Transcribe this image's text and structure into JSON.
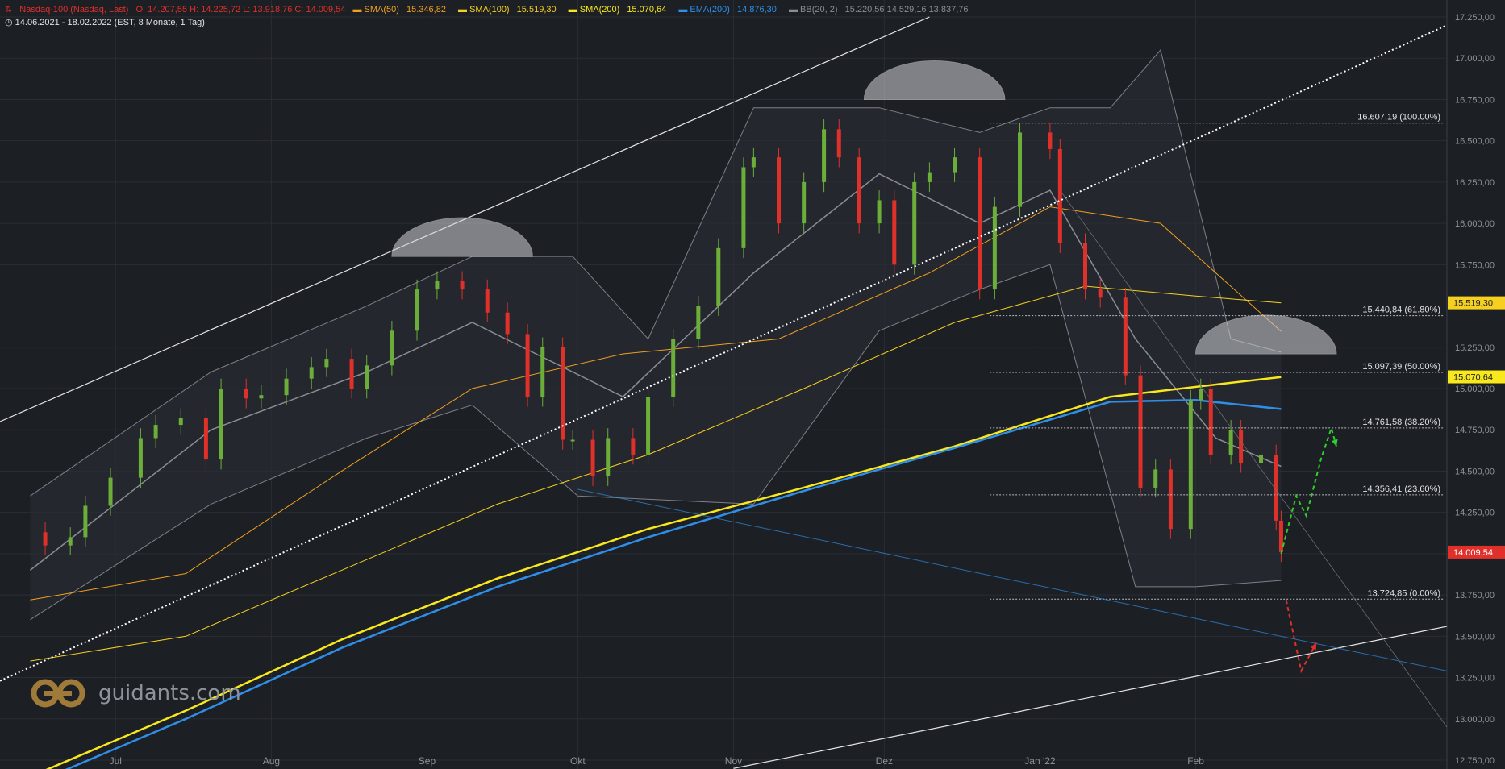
{
  "header": {
    "symbol": "Nasdaq-100 (Nasdaq, Last)",
    "ohlc": "O: 14.207,55  H: 14.225,72  L: 13.918,76  C: 14.009,54",
    "indicators": [
      {
        "label": "SMA(50)",
        "value": "15.346,82",
        "color": "#f0a020"
      },
      {
        "label": "SMA(100)",
        "value": "15.519,30",
        "color": "#f5d020"
      },
      {
        "label": "SMA(200)",
        "value": "15.070,64",
        "color": "#f8e81c"
      },
      {
        "label": "EMA(200)",
        "value": "14.876,30",
        "color": "#2f8fe8"
      },
      {
        "label": "BB(20, 2)",
        "value": "15.220,56  14.529,16  13.837,76",
        "color": "#8a8d92"
      }
    ],
    "date_range": "14.06.2021 - 18.02.2022",
    "range_info": "(EST, 8 Monate, 1 Tag)"
  },
  "logo": {
    "text": "guidants.com",
    "icon": "guidants-logo-icon"
  },
  "chart_data": {
    "type": "candlestick",
    "title": "",
    "xlabel": "",
    "ylabel": "",
    "ylim": [
      12750,
      17250
    ],
    "y_ticks": [
      12750,
      13000,
      13250,
      13500,
      13750,
      14000,
      14250,
      14500,
      14750,
      15000,
      15250,
      15500,
      15750,
      16000,
      16250,
      16500,
      16750,
      17000,
      17250
    ],
    "y_tick_labels": [
      "12.750,00",
      "13.000,00",
      "13.250,00",
      "13.500,00",
      "13.750,00",
      "14.000,00",
      "14.250,00",
      "14.500,00",
      "14.750,00",
      "15.000,00",
      "15.250,00",
      "15.500,00",
      "15.750,00",
      "16.000,00",
      "16.250,00",
      "16.500,00",
      "16.750,00",
      "17.000,00",
      "17.250,00"
    ],
    "x_labels": [
      "Jul",
      "Aug",
      "Sep",
      "Okt",
      "Nov",
      "Dez",
      "Jan '22",
      "Feb"
    ],
    "x_label_dates": [
      "2021-07-01",
      "2021-08-01",
      "2021-09-01",
      "2021-10-01",
      "2021-11-01",
      "2021-12-01",
      "2022-01-01",
      "2022-02-01"
    ],
    "candles_close_path": [
      [
        "2021-06-14",
        14130
      ],
      [
        "2021-06-17",
        14050
      ],
      [
        "2021-06-22",
        14100
      ],
      [
        "2021-06-25",
        14290
      ],
      [
        "2021-06-30",
        14460
      ],
      [
        "2021-07-06",
        14700
      ],
      [
        "2021-07-09",
        14780
      ],
      [
        "2021-07-14",
        14820
      ],
      [
        "2021-07-19",
        14570
      ],
      [
        "2021-07-22",
        15000
      ],
      [
        "2021-07-27",
        14940
      ],
      [
        "2021-07-30",
        14960
      ],
      [
        "2021-08-04",
        15060
      ],
      [
        "2021-08-09",
        15130
      ],
      [
        "2021-08-12",
        15180
      ],
      [
        "2021-08-17",
        15000
      ],
      [
        "2021-08-20",
        15140
      ],
      [
        "2021-08-25",
        15350
      ],
      [
        "2021-08-30",
        15600
      ],
      [
        "2021-09-03",
        15650
      ],
      [
        "2021-09-08",
        15600
      ],
      [
        "2021-09-13",
        15460
      ],
      [
        "2021-09-17",
        15330
      ],
      [
        "2021-09-21",
        14950
      ],
      [
        "2021-09-24",
        15250
      ],
      [
        "2021-09-28",
        14690
      ],
      [
        "2021-09-30",
        14690
      ],
      [
        "2021-10-04",
        14470
      ],
      [
        "2021-10-07",
        14700
      ],
      [
        "2021-10-12",
        14600
      ],
      [
        "2021-10-15",
        14950
      ],
      [
        "2021-10-20",
        15300
      ],
      [
        "2021-10-25",
        15500
      ],
      [
        "2021-10-29",
        15850
      ],
      [
        "2021-11-03",
        16340
      ],
      [
        "2021-11-05",
        16400
      ],
      [
        "2021-11-10",
        16000
      ],
      [
        "2021-11-15",
        16250
      ],
      [
        "2021-11-19",
        16570
      ],
      [
        "2021-11-22",
        16400
      ],
      [
        "2021-11-26",
        16000
      ],
      [
        "2021-11-30",
        16140
      ],
      [
        "2021-12-03",
        15750
      ],
      [
        "2021-12-07",
        16250
      ],
      [
        "2021-12-10",
        16310
      ],
      [
        "2021-12-15",
        16400
      ],
      [
        "2021-12-20",
        15600
      ],
      [
        "2021-12-23",
        16100
      ],
      [
        "2021-12-28",
        16550
      ],
      [
        "2022-01-03",
        16450
      ],
      [
        "2022-01-05",
        15880
      ],
      [
        "2022-01-10",
        15600
      ],
      [
        "2022-01-13",
        15550
      ],
      [
        "2022-01-18",
        15080
      ],
      [
        "2022-01-21",
        14400
      ],
      [
        "2022-01-24",
        14510
      ],
      [
        "2022-01-27",
        14150
      ],
      [
        "2022-01-31",
        14930
      ],
      [
        "2022-02-02",
        15000
      ],
      [
        "2022-02-04",
        14600
      ],
      [
        "2022-02-08",
        14750
      ],
      [
        "2022-02-10",
        14550
      ],
      [
        "2022-02-14",
        14600
      ],
      [
        "2022-02-17",
        14200
      ],
      [
        "2022-02-18",
        14010
      ]
    ],
    "moving_averages": [
      {
        "name": "SMA(50)",
        "color": "#f0a020",
        "points": [
          [
            "2021-06-14",
            13720
          ],
          [
            "2021-07-15",
            13880
          ],
          [
            "2021-08-15",
            14500
          ],
          [
            "2021-09-10",
            15000
          ],
          [
            "2021-10-10",
            15210
          ],
          [
            "2021-11-10",
            15300
          ],
          [
            "2021-12-10",
            15700
          ],
          [
            "2022-01-03",
            16100
          ],
          [
            "2022-01-25",
            16000
          ],
          [
            "2022-02-18",
            15346
          ]
        ]
      },
      {
        "name": "SMA(100)",
        "color": "#f5d020",
        "points": [
          [
            "2021-06-14",
            13350
          ],
          [
            "2021-07-15",
            13500
          ],
          [
            "2021-08-15",
            13900
          ],
          [
            "2021-09-15",
            14300
          ],
          [
            "2021-10-15",
            14600
          ],
          [
            "2021-11-15",
            15000
          ],
          [
            "2021-12-15",
            15400
          ],
          [
            "2022-01-10",
            15620
          ],
          [
            "2022-02-01",
            15560
          ],
          [
            "2022-02-18",
            15519
          ]
        ]
      },
      {
        "name": "SMA(200)",
        "color": "#f8e81c",
        "points": [
          [
            "2021-06-14",
            12650
          ],
          [
            "2021-07-15",
            13050
          ],
          [
            "2021-08-15",
            13480
          ],
          [
            "2021-09-15",
            13850
          ],
          [
            "2021-10-15",
            14150
          ],
          [
            "2021-11-15",
            14400
          ],
          [
            "2021-12-15",
            14650
          ],
          [
            "2022-01-15",
            14950
          ],
          [
            "2022-02-18",
            15070
          ]
        ]
      },
      {
        "name": "EMA(200)",
        "color": "#2f8fe8",
        "points": [
          [
            "2021-06-14",
            12600
          ],
          [
            "2021-07-15",
            13000
          ],
          [
            "2021-08-15",
            13430
          ],
          [
            "2021-09-15",
            13800
          ],
          [
            "2021-10-15",
            14100
          ],
          [
            "2021-11-15",
            14380
          ],
          [
            "2021-12-15",
            14640
          ],
          [
            "2022-01-15",
            14920
          ],
          [
            "2022-02-01",
            14930
          ],
          [
            "2022-02-18",
            14876
          ]
        ]
      }
    ],
    "bollinger": {
      "name": "BB(20, 2)",
      "upper": [
        [
          "2021-06-14",
          14350
        ],
        [
          "2021-07-20",
          15100
        ],
        [
          "2021-08-20",
          15500
        ],
        [
          "2021-09-10",
          15800
        ],
        [
          "2021-09-30",
          15800
        ],
        [
          "2021-10-15",
          15300
        ],
        [
          "2021-11-05",
          16700
        ],
        [
          "2021-11-30",
          16700
        ],
        [
          "2021-12-20",
          16550
        ],
        [
          "2022-01-03",
          16700
        ],
        [
          "2022-01-15",
          16700
        ],
        [
          "2022-01-25",
          17050
        ],
        [
          "2022-02-08",
          15300
        ],
        [
          "2022-02-18",
          15220
        ]
      ],
      "middle": [
        [
          "2021-06-14",
          13900
        ],
        [
          "2021-07-20",
          14750
        ],
        [
          "2021-08-20",
          15100
        ],
        [
          "2021-09-10",
          15400
        ],
        [
          "2021-10-10",
          14950
        ],
        [
          "2021-11-05",
          15700
        ],
        [
          "2021-11-30",
          16300
        ],
        [
          "2021-12-20",
          16000
        ],
        [
          "2022-01-03",
          16200
        ],
        [
          "2022-01-20",
          15300
        ],
        [
          "2022-02-05",
          14700
        ],
        [
          "2022-02-18",
          14529
        ]
      ],
      "lower": [
        [
          "2021-06-14",
          13600
        ],
        [
          "2021-07-20",
          14300
        ],
        [
          "2021-08-20",
          14700
        ],
        [
          "2021-09-10",
          14900
        ],
        [
          "2021-10-01",
          14350
        ],
        [
          "2021-11-05",
          14300
        ],
        [
          "2021-11-30",
          15350
        ],
        [
          "2021-12-20",
          15600
        ],
        [
          "2022-01-03",
          15750
        ],
        [
          "2022-01-20",
          13800
        ],
        [
          "2022-02-01",
          13800
        ],
        [
          "2022-02-18",
          13838
        ]
      ]
    },
    "fibonacci": [
      {
        "level": "100.00%",
        "value": 16607.19,
        "label": "16.607,19 (100.00%)"
      },
      {
        "level": "61.80%",
        "value": 15440.84,
        "label": "15.440,84 (61.80%)"
      },
      {
        "level": "50.00%",
        "value": 15097.39,
        "label": "15.097,39 (50.00%)"
      },
      {
        "level": "38.20%",
        "value": 14761.58,
        "label": "14.761,58 (38.20%)"
      },
      {
        "level": "23.60%",
        "value": 14356.41,
        "label": "14.356,41 (23.60%)"
      },
      {
        "level": "0.00%",
        "value": 13724.85,
        "label": "13.724,85 (0.00%)"
      }
    ],
    "price_tags": [
      {
        "value": 15519.3,
        "label": "15.519,30",
        "color": "#f5d020"
      },
      {
        "value": 15070.64,
        "label": "15.070,64",
        "color": "#f8e81c"
      },
      {
        "value": 14009.54,
        "label": "14.009,54",
        "color": "#e0302a"
      }
    ],
    "grid": true,
    "legend": "top-left",
    "colors": {
      "up": "#6cae3a",
      "down": "#e0302a",
      "background": "#1c1f24",
      "grid": "#2a2e34",
      "axis_text": "#8e939a"
    }
  }
}
